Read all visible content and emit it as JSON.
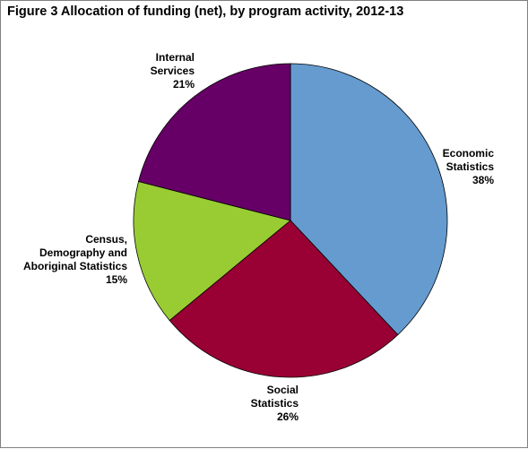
{
  "figure": {
    "title": "Figure 3  Allocation of funding (net), by program activity, 2012-13"
  },
  "chart_data": {
    "type": "pie",
    "title": "Figure 3  Allocation of funding (net), by program activity, 2012-13",
    "slices": [
      {
        "label": "Economic Statistics",
        "label_lines": [
          "Economic",
          "Statistics"
        ],
        "value": 38,
        "value_label": "38%",
        "color": "#659bcf"
      },
      {
        "label": "Social Statistics",
        "label_lines": [
          "Social",
          "Statistics"
        ],
        "value": 26,
        "value_label": "26%",
        "color": "#990033"
      },
      {
        "label": "Census, Demography and Aboriginal Statistics",
        "label_lines": [
          "Census,",
          "Demography and",
          "Aboriginal Statistics"
        ],
        "value": 15,
        "value_label": "15%",
        "color": "#99cc33"
      },
      {
        "label": "Internal Services",
        "label_lines": [
          "Internal",
          "Services"
        ],
        "value": 21,
        "value_label": "21%",
        "color": "#660066"
      }
    ],
    "start_angle_deg": 0,
    "direction": "clockwise",
    "legend": "none"
  }
}
